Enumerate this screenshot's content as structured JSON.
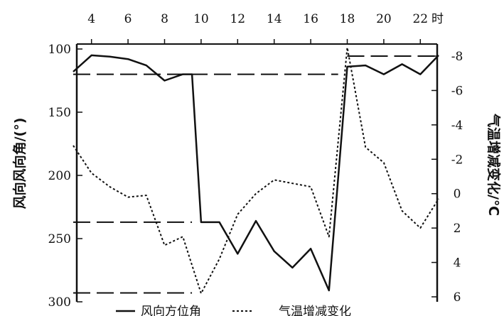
{
  "chart_data": {
    "type": "line",
    "x_unit": "时",
    "x_ticks": [
      4,
      6,
      8,
      10,
      12,
      14,
      16,
      18,
      20,
      22
    ],
    "x_range": [
      3,
      23
    ],
    "y_left_label": "风向风向角/(°)",
    "y_left_ticks": [
      100,
      150,
      200,
      250,
      300
    ],
    "y_left_range": [
      100,
      300
    ],
    "y_left_inverted": true,
    "y_right_label": "气温增减变化/℃",
    "y_right_ticks": [
      "-8",
      "-6",
      "-4",
      "-2",
      "0",
      "2",
      "4",
      "6"
    ],
    "y_right_range": [
      -8,
      6
    ],
    "series": [
      {
        "name": "风向方位角",
        "axis": "left",
        "style": "solid",
        "x": [
          3,
          4,
          5,
          6,
          7,
          8,
          9,
          9.5,
          10,
          11,
          12,
          13,
          14,
          15,
          16,
          17,
          18,
          19,
          20,
          21,
          22,
          23
        ],
        "y": [
          118,
          105,
          106,
          108,
          113,
          125,
          120,
          120,
          237,
          237,
          262,
          236,
          260,
          273,
          258,
          291,
          114,
          113,
          120,
          112,
          120,
          105
        ]
      },
      {
        "name": "气温增减变化",
        "axis": "right",
        "style": "dotted",
        "x": [
          3,
          4,
          5,
          6,
          7,
          8,
          9,
          10,
          11,
          12,
          13,
          14,
          15,
          16,
          17,
          18,
          19,
          20,
          21,
          22,
          23
        ],
        "y": [
          -2.8,
          -1.2,
          -0.4,
          0.2,
          0.1,
          3.0,
          2.5,
          5.8,
          3.8,
          1.2,
          0,
          -0.8,
          -0.6,
          -0.4,
          2.5,
          -8.5,
          -2.7,
          -1.8,
          1.0,
          2.0,
          0.3
        ]
      }
    ],
    "reference_lines": [
      {
        "axis": "left",
        "y": 120,
        "x_range": [
          3,
          17.5
        ],
        "style": "long-dash"
      },
      {
        "axis": "left",
        "y": 237,
        "x_range": [
          3,
          9.5
        ],
        "style": "long-dash"
      },
      {
        "axis": "left",
        "y": 293,
        "x_range": [
          3,
          9.5
        ],
        "style": "long-dash"
      },
      {
        "axis": "right",
        "y": -8,
        "x_range": [
          18,
          23
        ],
        "style": "long-dash"
      }
    ],
    "legend": [
      {
        "label": "风向方位角",
        "style": "solid"
      },
      {
        "label": "气温增减变化",
        "style": "dotted"
      }
    ],
    "legend_position": "bottom"
  }
}
